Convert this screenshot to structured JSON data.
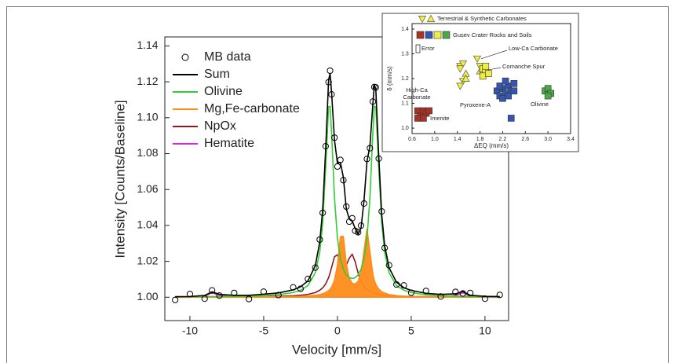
{
  "chart_data": [
    {
      "type": "line",
      "xlabel": "Velocity [mm/s]",
      "ylabel": "Intensity [Counts/Baseline]",
      "xlim": [
        -11.7,
        11.6
      ],
      "ylim": [
        0.987,
        1.145
      ],
      "xticks": [
        -10,
        -5,
        0,
        5,
        10
      ],
      "yticks": [
        {
          "value": 1.0,
          "label": "1.00"
        },
        {
          "value": 1.02,
          "label": "1.02"
        },
        {
          "value": 1.04,
          "label": "1.04"
        },
        {
          "value": 1.06,
          "label": "1.06"
        },
        {
          "value": 1.08,
          "label": "1.08"
        },
        {
          "value": 1.1,
          "label": "1.10"
        },
        {
          "value": 1.12,
          "label": "1.12"
        },
        {
          "value": 1.14,
          "label": "1.14"
        }
      ],
      "legend": "upper left",
      "x": [
        -11,
        -10,
        -9,
        -8.5,
        -8,
        -7,
        -6,
        -5,
        -4,
        -3,
        -2.5,
        -2,
        -1.5,
        -1.2,
        -1,
        -0.8,
        -0.6,
        -0.5,
        -0.4,
        -0.2,
        0,
        0.2,
        0.4,
        0.6,
        0.8,
        1,
        1.2,
        1.4,
        1.6,
        1.8,
        2,
        2.2,
        2.4,
        2.5,
        2.6,
        2.8,
        3,
        3.2,
        3.5,
        4,
        4.5,
        5,
        6,
        7,
        8,
        8.5,
        9,
        10,
        11
      ],
      "series": [
        {
          "name": "MB data",
          "style": "markers",
          "color": "#000000",
          "values": [
            0.9985,
            1.0018,
            0.9992,
            1.0038,
            1.0009,
            1.0024,
            0.999,
            1.0031,
            1.0012,
            1.0055,
            1.0047,
            1.0102,
            1.0165,
            1.0321,
            1.047,
            1.0841,
            1.1198,
            1.1262,
            1.113,
            1.0889,
            1.0728,
            1.0765,
            1.0652,
            1.0505,
            1.0421,
            1.044,
            1.037,
            1.0362,
            1.0399,
            1.0522,
            1.077,
            1.083,
            1.109,
            1.1171,
            1.1169,
            1.0772,
            1.0478,
            1.0275,
            1.0178,
            1.0071,
            1.0066,
            1.0025,
            1.0035,
            1.0004,
            1.003,
            1.0021,
            1.0024,
            0.9992,
            1.0013
          ]
        },
        {
          "name": "Sum",
          "style": "line",
          "color": "#000000",
          "values": [
            1.0003,
            1.0004,
            1.001,
            1.003,
            1.0016,
            1.0011,
            1.0011,
            1.0017,
            1.0024,
            1.0041,
            1.0058,
            1.0091,
            1.0176,
            1.0307,
            1.0488,
            1.0823,
            1.1211,
            1.1246,
            1.1143,
            1.0875,
            1.0746,
            1.0751,
            1.0668,
            1.0492,
            1.0436,
            1.0425,
            1.0383,
            1.0351,
            1.0386,
            1.0538,
            1.0756,
            1.0842,
            1.1076,
            1.1184,
            1.1158,
            1.0785,
            1.0461,
            1.0288,
            1.0164,
            1.0084,
            1.0053,
            1.0038,
            1.0022,
            1.0016,
            1.0019,
            1.0032,
            1.0011,
            1.0005,
            1.0004
          ]
        },
        {
          "name": "Olivine",
          "style": "line",
          "color": "#33cc33",
          "values": [
            1.0002,
            1.0002,
            1.0003,
            1.0003,
            1.0004,
            1.0005,
            1.0006,
            1.0009,
            1.0014,
            1.0026,
            1.0039,
            1.0065,
            1.0136,
            1.025,
            1.0413,
            1.072,
            1.1062,
            1.1063,
            1.0919,
            1.0552,
            1.0328,
            1.0215,
            1.0156,
            1.0124,
            1.0109,
            1.0104,
            1.0109,
            1.0124,
            1.0156,
            1.0215,
            1.0328,
            1.0552,
            1.0919,
            1.1063,
            1.1062,
            1.072,
            1.0413,
            1.025,
            1.0136,
            1.0065,
            1.0039,
            1.0026,
            1.0014,
            1.0009,
            1.0006,
            1.0005,
            1.0004,
            1.0003,
            1.0002
          ]
        },
        {
          "name": "Mg,Fe-carbonate",
          "style": "area",
          "color": "#ff8c1a",
          "values": [
            1.0,
            1.0001,
            1.0001,
            1.0001,
            1.0001,
            1.0001,
            1.0001,
            1.0002,
            1.0002,
            1.0004,
            1.0005,
            1.0007,
            1.0011,
            1.0015,
            1.002,
            1.0026,
            1.0037,
            1.0045,
            1.0056,
            1.0094,
            1.0179,
            1.0337,
            1.0339,
            1.0186,
            1.0107,
            1.0078,
            1.0073,
            1.0089,
            1.0138,
            1.0258,
            1.038,
            1.0253,
            1.0128,
            1.0094,
            1.0072,
            1.0045,
            1.0031,
            1.0023,
            1.0015,
            1.0009,
            1.0006,
            1.0005,
            1.0003,
            1.0002,
            1.0001,
            1.0001,
            1.0001,
            1.0001,
            1.0001
          ]
        },
        {
          "name": "NpOx",
          "style": "line",
          "color": "#8b1a1a",
          "values": [
            1.0001,
            1.0001,
            1.0001,
            1.0001,
            1.0001,
            1.0002,
            1.0002,
            1.0003,
            1.0005,
            1.0008,
            1.0011,
            1.0016,
            1.0026,
            1.0039,
            1.0052,
            1.0074,
            1.0109,
            1.0135,
            1.0165,
            1.0226,
            1.0236,
            1.0196,
            1.017,
            1.0179,
            1.0217,
            1.024,
            1.0198,
            1.0135,
            1.0089,
            1.0062,
            1.0045,
            1.0034,
            1.0026,
            1.0024,
            1.0021,
            1.0017,
            1.0014,
            1.0012,
            1.001,
            1.0007,
            1.0005,
            1.0004,
            1.0003,
            1.0002,
            1.0002,
            1.0001,
            1.0001,
            1.0001,
            1.0001
          ]
        },
        {
          "name": "Hematite",
          "style": "line",
          "color": "#e020e0",
          "values": [
            1.0,
            1.0,
            1.0005,
            1.0025,
            1.001,
            1.0003,
            1.0002,
            1.0003,
            1.0003,
            1.0003,
            1.0003,
            1.0003,
            1.0003,
            1.0003,
            1.0003,
            1.0003,
            1.0003,
            1.0003,
            1.0003,
            1.0003,
            1.0003,
            1.0003,
            1.0003,
            1.0003,
            1.0003,
            1.0003,
            1.0003,
            1.0003,
            1.0003,
            1.0003,
            1.0003,
            1.0003,
            1.0003,
            1.0003,
            1.0003,
            1.0003,
            1.0003,
            1.0003,
            1.0003,
            1.0003,
            1.0003,
            1.0003,
            1.0002,
            1.0003,
            1.001,
            1.0025,
            1.0005,
            1.0,
            1.0
          ]
        }
      ]
    },
    {
      "type": "scatter",
      "xlabel": "ΔEQ (mm/s)",
      "ylabel": "δ (mm/s)",
      "xlim": [
        0.6,
        3.4
      ],
      "ylim": [
        0.978,
        1.422
      ],
      "xticks": [
        0.6,
        {
          "value": 1.0,
          "label": "1.0"
        },
        1.4,
        1.8,
        2.2,
        2.6,
        {
          "value": 3.0,
          "label": "3.0"
        },
        3.4
      ],
      "yticks": [
        {
          "value": 1.0,
          "label": "1.0"
        },
        1.1,
        1.2,
        1.3,
        1.4
      ],
      "series": [
        {
          "name": "Terrestrial & Synthetic Carbonates",
          "marker": "triangle",
          "color": "#f0f040",
          "x": [
            1.45,
            1.5,
            1.55,
            1.5,
            1.45,
            1.55,
            1.75,
            1.8,
            1.8,
            1.85,
            1.45
          ],
          "y": [
            1.25,
            1.26,
            1.22,
            1.19,
            1.17,
            1.2,
            1.28,
            1.25,
            1.23,
            1.22,
            1.24
          ]
        },
        {
          "name": "Gusev Crater Rocks and Soils",
          "marker": "square",
          "groups": [
            {
              "color": "#a83228",
              "x": [
                0.7,
                0.75,
                0.8,
                0.85,
                0.9,
                0.7,
                0.8
              ],
              "y": [
                1.07,
                1.05,
                1.07,
                1.06,
                1.07,
                1.04,
                1.04
              ]
            },
            {
              "color": "#3556b0",
              "x": [
                2.1,
                2.15,
                2.2,
                2.25,
                2.3,
                2.35,
                2.2,
                2.3,
                2.4,
                2.15,
                2.25,
                2.4,
                2.35
              ],
              "y": [
                1.15,
                1.13,
                1.16,
                1.14,
                1.17,
                1.15,
                1.12,
                1.13,
                1.18,
                1.17,
                1.19,
                1.15,
                1.04
              ]
            },
            {
              "color": "#4aa84a",
              "x": [
                2.95,
                3.0,
                3.05,
                3.0
              ],
              "y": [
                1.15,
                1.16,
                1.14,
                1.13
              ]
            },
            {
              "color": "#eeee44",
              "x": [
                1.85,
                1.9,
                1.85,
                1.95,
                1.9
              ],
              "y": [
                1.24,
                1.23,
                1.21,
                1.22,
                1.25
              ]
            }
          ]
        }
      ],
      "annotations": [
        "Error",
        "Low-Ca Carbonate",
        "Comanche Spur",
        "High-Ca",
        "Carbonate",
        "Pyroxene-A",
        "Olivine",
        "Imenite"
      ]
    }
  ]
}
